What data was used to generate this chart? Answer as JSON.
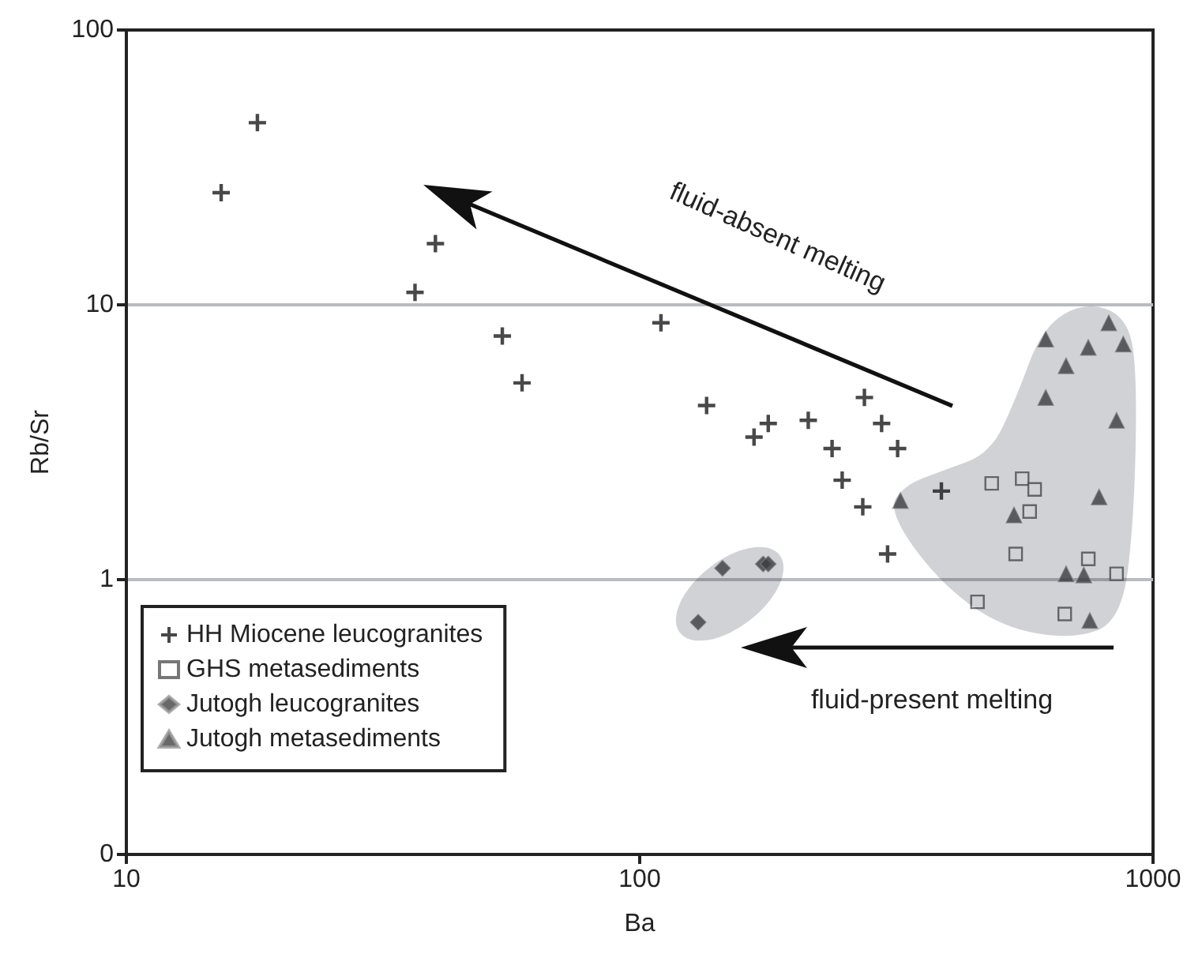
{
  "chart_data": {
    "type": "scatter",
    "xlabel": "Ba",
    "ylabel": "Rb/Sr",
    "log": "xy",
    "grid": "y",
    "legend": "bottom left",
    "xlim": [
      10,
      1000
    ],
    "xticks": [
      10,
      100,
      1000
    ],
    "ylim": [
      0.1,
      100
    ],
    "yticks": [
      {
        "value": 0.1,
        "label": "0"
      },
      1,
      10,
      100
    ],
    "annotations": [
      "fluid-absent melting",
      "fluid-present melting"
    ],
    "series": [
      {
        "name": "HH Miocene leucogranites",
        "color": "#1a1a1a",
        "marker": "cross",
        "x": [
          18,
          15.3,
          40,
          36.5,
          54,
          59,
          110,
          135,
          167,
          178,
          213,
          274,
          296,
          237,
          318,
          248,
          387,
          272,
          304
        ],
        "values": [
          46,
          25.6,
          16.7,
          11.1,
          7.7,
          5.2,
          8.6,
          4.3,
          3.3,
          3.7,
          3.8,
          4.6,
          3.7,
          3.0,
          3.0,
          2.3,
          2.1,
          1.84,
          1.24
        ]
      },
      {
        "name": "GHS metasediments",
        "color": "#555555",
        "marker": "square",
        "x": [
          485,
          556,
          588,
          575,
          540,
          748,
          849,
          455,
          673
        ],
        "values": [
          2.24,
          2.33,
          2.13,
          1.77,
          1.24,
          1.19,
          1.05,
          0.83,
          0.75
        ]
      },
      {
        "name": "Jutogh leucogranites",
        "color": "#444444",
        "marker": "diamond",
        "x": [
          145,
          174,
          178,
          130
        ],
        "values": [
          1.1,
          1.14,
          1.14,
          0.7
        ]
      },
      {
        "name": "Jutogh metasediments",
        "color": "#444444",
        "marker": "triangle",
        "x": [
          820,
          618,
          748,
          875,
          677,
          618,
          849,
          785,
          322,
          536,
          677,
          733,
          753
        ],
        "values": [
          8.6,
          7.5,
          7.0,
          7.2,
          6.0,
          4.6,
          3.8,
          2.0,
          1.94,
          1.72,
          1.05,
          1.04,
          0.71
        ]
      }
    ]
  }
}
